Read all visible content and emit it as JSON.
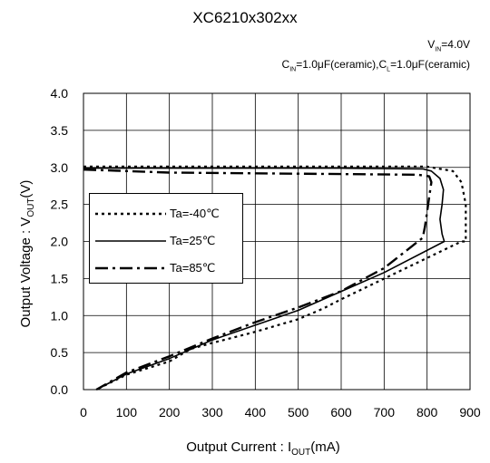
{
  "chart_data": {
    "type": "line",
    "title": "XC6210x302xx",
    "conditions": {
      "vin": "V",
      "vin_sub": "IN",
      "vin_val": "=4.0V",
      "cin": "C",
      "cin_sub": "IN",
      "cin_val": "=1.0μF(ceramic),C",
      "cl_sub": "L",
      "cl_val": "=1.0μF(ceramic)"
    },
    "xlabel_main": "Output Current : I",
    "xlabel_sub": "OUT",
    "xlabel_unit": "(mA)",
    "ylabel_main": "Output Voltage : V",
    "ylabel_sub": "OUT",
    "ylabel_unit": "(V)",
    "xlim": [
      0,
      900
    ],
    "ylim": [
      0,
      4
    ],
    "xticks": [
      "0",
      "100",
      "200",
      "300",
      "400",
      "500",
      "600",
      "700",
      "800",
      "900"
    ],
    "yticks": [
      "0.0",
      "0.5",
      "1.0",
      "1.5",
      "2.0",
      "2.5",
      "3.0",
      "3.5",
      "4.0"
    ],
    "grid": true,
    "legend_position": "left-middle",
    "series": [
      {
        "name": "Ta=-40℃",
        "style": "dotted",
        "points": [
          [
            0,
            3.01
          ],
          [
            200,
            3.01
          ],
          [
            400,
            3.01
          ],
          [
            600,
            3.01
          ],
          [
            800,
            3.01
          ],
          [
            860,
            2.95
          ],
          [
            880,
            2.8
          ],
          [
            890,
            2.5
          ],
          [
            890,
            2.0
          ],
          [
            880,
            2.0
          ],
          [
            600,
            1.22
          ],
          [
            560,
            1.1
          ],
          [
            540,
            1.05
          ],
          [
            500,
            0.95
          ],
          [
            400,
            0.78
          ],
          [
            300,
            0.63
          ],
          [
            250,
            0.55
          ],
          [
            200,
            0.38
          ],
          [
            100,
            0.2
          ],
          [
            30,
            0.0
          ]
        ]
      },
      {
        "name": "Ta=25℃",
        "style": "solid",
        "points": [
          [
            0,
            2.99
          ],
          [
            200,
            2.99
          ],
          [
            400,
            2.99
          ],
          [
            600,
            2.99
          ],
          [
            790,
            2.98
          ],
          [
            810,
            2.95
          ],
          [
            830,
            2.85
          ],
          [
            838,
            2.7
          ],
          [
            835,
            2.5
          ],
          [
            830,
            2.3
          ],
          [
            835,
            2.1
          ],
          [
            840,
            2.0
          ],
          [
            700,
            1.58
          ],
          [
            500,
            1.07
          ],
          [
            400,
            0.87
          ],
          [
            300,
            0.67
          ],
          [
            200,
            0.42
          ],
          [
            100,
            0.21
          ],
          [
            30,
            0.0
          ]
        ]
      },
      {
        "name": "Ta=85℃",
        "style": "dashdot",
        "points": [
          [
            0,
            2.97
          ],
          [
            100,
            2.95
          ],
          [
            200,
            2.93
          ],
          [
            400,
            2.92
          ],
          [
            600,
            2.91
          ],
          [
            780,
            2.9
          ],
          [
            805,
            2.88
          ],
          [
            810,
            2.8
          ],
          [
            805,
            2.6
          ],
          [
            800,
            2.4
          ],
          [
            795,
            2.2
          ],
          [
            790,
            2.05
          ],
          [
            700,
            1.64
          ],
          [
            600,
            1.33
          ],
          [
            500,
            1.11
          ],
          [
            400,
            0.91
          ],
          [
            300,
            0.69
          ],
          [
            200,
            0.45
          ],
          [
            100,
            0.23
          ],
          [
            30,
            0.0
          ]
        ]
      }
    ]
  }
}
